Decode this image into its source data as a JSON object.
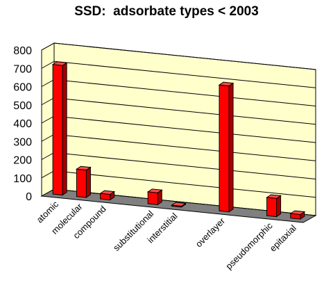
{
  "chart_data": {
    "type": "bar",
    "title": "SSD:  adsorbate types < 2003",
    "categories": [
      "atomic",
      "molecular",
      "compound",
      "substitutional",
      "interstitial",
      "overlayer",
      "pseudomorphic",
      "epitaxial"
    ],
    "values": [
      710,
      150,
      30,
      65,
      5,
      690,
      100,
      25
    ],
    "category_slots": [
      0,
      1,
      2,
      4,
      5,
      7,
      9,
      10
    ],
    "slot_count": 11,
    "ylim": [
      0,
      800
    ],
    "yticks": [
      0,
      100,
      200,
      300,
      400,
      500,
      600,
      700,
      800
    ],
    "grid": true,
    "legend": "none",
    "colors": {
      "bar_front": "#ff0000",
      "bar_side": "#a30000",
      "bar_top": "#ff4a4a",
      "wall": "#ffffcc",
      "floor": "#808080",
      "grid": "#000000"
    }
  }
}
